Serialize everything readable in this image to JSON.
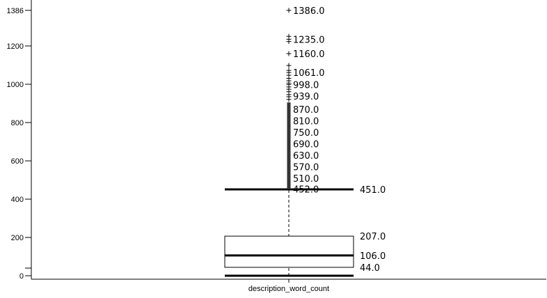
{
  "chart_data": {
    "type": "box",
    "category": "description_word_count",
    "ylim": [
      -18,
      1440
    ],
    "y_ticks": [
      {
        "value": 0,
        "label": "0"
      },
      {
        "value": 200,
        "label": "200"
      },
      {
        "value": 400,
        "label": "400"
      },
      {
        "value": 600,
        "label": "600"
      },
      {
        "value": 800,
        "label": "800"
      },
      {
        "value": 1000,
        "label": "1000"
      },
      {
        "value": 1200,
        "label": "1200"
      },
      {
        "value": 1386,
        "label": "1386"
      }
    ],
    "minor_tick": 40,
    "box": {
      "whisker_low": 0,
      "q1": 44,
      "median": 106,
      "q3": 207,
      "whisker_high": 451
    },
    "box_labels": [
      {
        "value": 451,
        "label": "451.0"
      },
      {
        "value": 207,
        "label": "207.0"
      },
      {
        "value": 106,
        "label": "106.0"
      },
      {
        "value": 44,
        "label": "44.0"
      }
    ],
    "outlier_band": [
      452,
      905
    ],
    "outliers": [
      921,
      935,
      946,
      961,
      974,
      986,
      998,
      1006,
      1018,
      1031,
      1047,
      1061,
      1072,
      1098,
      1160,
      1223,
      1235,
      1250,
      1386
    ],
    "outlier_labels": [
      {
        "value": 1386,
        "label": "1386.0"
      },
      {
        "value": 1235,
        "label": "1235.0"
      },
      {
        "value": 1160,
        "label": "1160.0"
      },
      {
        "value": 1061,
        "label": "1061.0"
      },
      {
        "value": 998,
        "label": "998.0"
      },
      {
        "value": 939,
        "label": "939.0"
      },
      {
        "value": 870,
        "label": "870.0"
      },
      {
        "value": 810,
        "label": "810.0"
      },
      {
        "value": 750,
        "label": "750.0"
      },
      {
        "value": 690,
        "label": "690.0"
      },
      {
        "value": 630,
        "label": "630.0"
      },
      {
        "value": 570,
        "label": "570.0"
      },
      {
        "value": 510,
        "label": "510.0"
      },
      {
        "value": 452,
        "label": "452.0"
      }
    ],
    "grid": false
  }
}
